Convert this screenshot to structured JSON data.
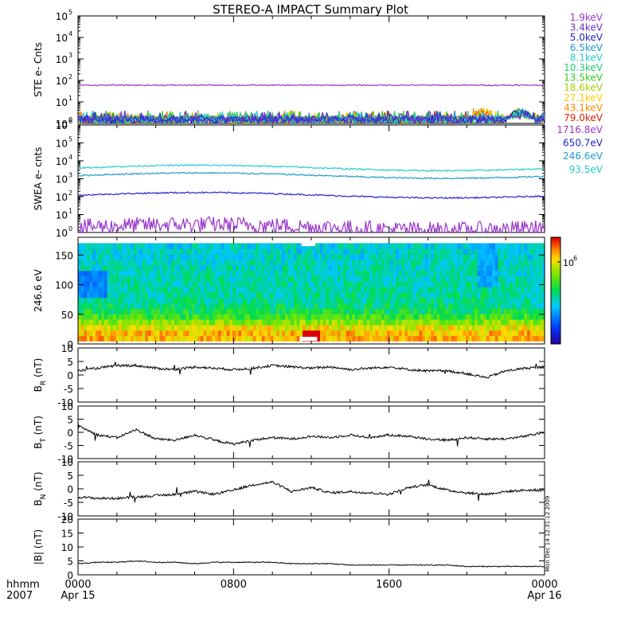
{
  "title": "STEREO-A IMPACT Summary Plot",
  "stamp": "Mon Dec 14 12:31:12 2009",
  "time_axis": {
    "label_top": "hhmm",
    "label_bottom": "2007",
    "ticks": [
      {
        "hhmm": "0000",
        "date": "Apr 15"
      },
      {
        "hhmm": "0800",
        "date": ""
      },
      {
        "hhmm": "1600",
        "date": ""
      },
      {
        "hhmm": "0000",
        "date": "Apr 16"
      }
    ],
    "range_hours": [
      0,
      24
    ]
  },
  "chart_data": [
    {
      "type": "line",
      "panel": "ste",
      "ylabel": "STE e- Cnts",
      "log": true,
      "ylim_exp": [
        0,
        5
      ],
      "tick_labels": [
        "10",
        "10",
        "10",
        "10",
        "10",
        "10"
      ],
      "tick_exps": [
        "0",
        "1",
        "2",
        "3",
        "4",
        "5"
      ],
      "series": [
        {
          "name": "1.9keV",
          "color": "#9933cc",
          "level": 60
        },
        {
          "name": "3.4keV",
          "color": "#6633cc",
          "level": 1.5
        },
        {
          "name": "5.0keV",
          "color": "#2222cc",
          "level": 1.4
        },
        {
          "name": "6.5keV",
          "color": "#2299cc",
          "level": 1.3
        },
        {
          "name": "8.1keV",
          "color": "#22cccc",
          "level": 1.2
        },
        {
          "name": "10.3keV",
          "color": "#22cc77",
          "level": 1.1
        },
        {
          "name": "13.5keV",
          "color": "#33cc22",
          "level": 1.05
        },
        {
          "name": "18.6keV",
          "color": "#aacc00",
          "level": 1.0
        },
        {
          "name": "27.1keV",
          "color": "#ffcc00",
          "level": 1.0
        },
        {
          "name": "43.1keV",
          "color": "#ff8800",
          "level": 1.0
        },
        {
          "name": "79.0keV",
          "color": "#dd2200",
          "level": 1.0
        }
      ]
    },
    {
      "type": "line",
      "panel": "swea",
      "ylabel": "SWEA e- cnts",
      "log": true,
      "ylim_exp": [
        0,
        6
      ],
      "tick_labels": [
        "10",
        "10",
        "10",
        "10",
        "10",
        "10",
        "10"
      ],
      "tick_exps": [
        "0",
        "1",
        "2",
        "3",
        "4",
        "5",
        "6"
      ],
      "series": [
        {
          "name": "1716.8eV",
          "color": "#9933cc",
          "level": 2
        },
        {
          "name": "650.7eV",
          "color": "#2222cc",
          "level": 120
        },
        {
          "name": "246.6eV",
          "color": "#2299cc",
          "level": 1500
        },
        {
          "name": "93.5eV",
          "color": "#22cccc",
          "level": 4000
        }
      ]
    },
    {
      "type": "heatmap",
      "panel": "pitch",
      "ylabel": "246.6 eV",
      "ylim": [
        0,
        180
      ],
      "yticks": [
        "0",
        "50",
        "100",
        "150"
      ],
      "colorbar_label": "10",
      "colorbar_exp": "6"
    },
    {
      "type": "line",
      "panel": "br",
      "ylabel": "B",
      "ylabel_sub": "R",
      "ylabel_unit": "(nT)",
      "ylim": [
        -10,
        10
      ],
      "yticks": [
        "10",
        "5",
        "0",
        "-5",
        "-10"
      ],
      "x": [
        0,
        1,
        2,
        3,
        4,
        5,
        6,
        7,
        8,
        9,
        10,
        11,
        12,
        13,
        14,
        15,
        16,
        17,
        18,
        19,
        20,
        21,
        22,
        23,
        24
      ],
      "values": [
        1.5,
        2.5,
        3.5,
        3.5,
        2.5,
        2.0,
        3.0,
        2.5,
        2.0,
        2.5,
        3.5,
        3.0,
        2.5,
        3.0,
        2.0,
        2.5,
        3.0,
        2.0,
        1.5,
        1.5,
        0.5,
        -1.0,
        1.5,
        2.5,
        3.0
      ],
      "color": "#000000"
    },
    {
      "type": "line",
      "panel": "bt",
      "ylabel": "B",
      "ylabel_sub": "T",
      "ylabel_unit": "(nT)",
      "ylim": [
        -10,
        10
      ],
      "yticks": [
        "10",
        "5",
        "0",
        "-5",
        "-10"
      ],
      "x": [
        0,
        1,
        2,
        3,
        4,
        5,
        6,
        7,
        8,
        9,
        10,
        11,
        12,
        13,
        14,
        15,
        16,
        17,
        18,
        19,
        20,
        21,
        22,
        23,
        24
      ],
      "values": [
        2.5,
        -1.0,
        -2.0,
        1.0,
        -2.5,
        -3.0,
        -1.0,
        -3.0,
        -4.5,
        -3.0,
        -2.0,
        -2.5,
        -1.5,
        -2.0,
        -1.0,
        -2.0,
        -1.0,
        -1.5,
        -2.5,
        -3.0,
        -2.0,
        -2.5,
        -2.5,
        -1.5,
        0.0
      ],
      "color": "#000000"
    },
    {
      "type": "line",
      "panel": "bn",
      "ylabel": "B",
      "ylabel_sub": "N",
      "ylabel_unit": "(nT)",
      "ylim": [
        -10,
        10
      ],
      "yticks": [
        "10",
        "5",
        "0",
        "-5",
        "-10"
      ],
      "x": [
        0,
        1,
        2,
        3,
        4,
        5,
        6,
        7,
        8,
        9,
        10,
        11,
        12,
        13,
        14,
        15,
        16,
        17,
        18,
        19,
        20,
        21,
        22,
        23,
        24
      ],
      "values": [
        -3.0,
        -3.5,
        -3.5,
        -3.0,
        -2.5,
        -2.0,
        -1.0,
        -2.0,
        -0.5,
        1.5,
        2.5,
        -1.0,
        0.5,
        -1.5,
        -1.0,
        -1.5,
        -2.0,
        0.5,
        1.5,
        -0.5,
        -1.5,
        -2.0,
        -1.0,
        -0.5,
        -0.5
      ],
      "color": "#000000"
    },
    {
      "type": "line",
      "panel": "bmag",
      "ylabel": "|B|",
      "ylabel_unit": "(nT)",
      "ylim": [
        0,
        20
      ],
      "yticks": [
        "20",
        "15",
        "10",
        "5",
        "0"
      ],
      "x": [
        0,
        1,
        2,
        3,
        4,
        5,
        6,
        7,
        8,
        9,
        10,
        11,
        12,
        13,
        14,
        15,
        16,
        17,
        18,
        19,
        20,
        21,
        22,
        23,
        24
      ],
      "values": [
        4.0,
        4.5,
        4.5,
        5.0,
        4.5,
        4.5,
        4.0,
        4.5,
        4.5,
        4.5,
        4.5,
        4.0,
        4.0,
        4.0,
        3.5,
        3.5,
        3.5,
        3.5,
        3.5,
        3.5,
        3.0,
        3.0,
        3.0,
        3.0,
        3.0
      ],
      "color": "#000000"
    }
  ]
}
